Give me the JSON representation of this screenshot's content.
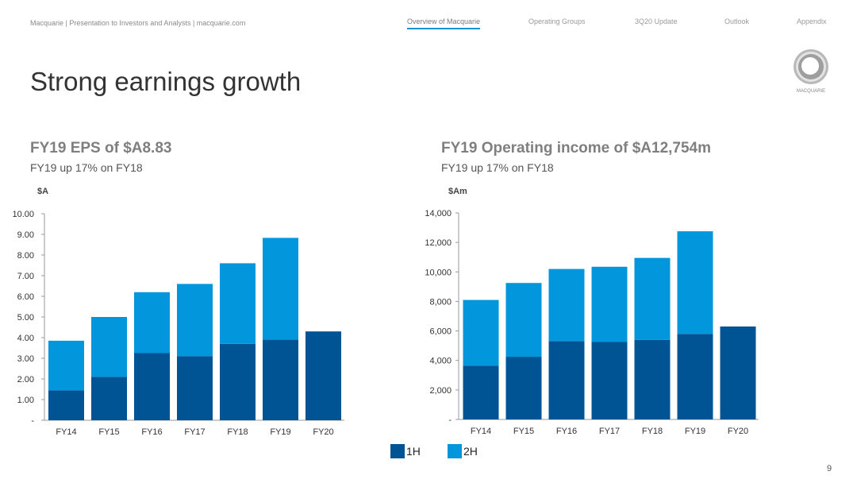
{
  "header": {
    "breadcrumb": "Macquarie  |  Presentation to Investors and Analysts |  macquarie.com",
    "nav": [
      {
        "label": "Overview of Macquarie",
        "active": true
      },
      {
        "label": "Operating Groups",
        "active": false
      },
      {
        "label": "3Q20 Update",
        "active": false
      },
      {
        "label": "Outlook",
        "active": false
      },
      {
        "label": "Appendix",
        "active": false
      }
    ],
    "logo_text": "MACQUARIE"
  },
  "page": {
    "title": "Strong earnings growth",
    "number": "9"
  },
  "colors": {
    "first_half": "#005493",
    "second_half": "#0296dc",
    "active_nav": "#1e90d6"
  },
  "legend": {
    "first": "1H",
    "second": "2H"
  },
  "left_chart": {
    "heading": "FY19 EPS of $A8.83",
    "subheading": "FY19 up 17% on FY18",
    "unit": "$A"
  },
  "right_chart": {
    "heading": "FY19 Operating income of $A12,754m",
    "subheading": "FY19 up 17% on FY18",
    "unit": "$Am"
  },
  "chart_data": [
    {
      "type": "bar",
      "stacked": true,
      "categories": [
        "FY14",
        "FY15",
        "FY16",
        "FY17",
        "FY18",
        "FY19",
        "FY20"
      ],
      "series": [
        {
          "name": "1H",
          "values": [
            1.45,
            2.1,
            3.25,
            3.1,
            3.7,
            3.9,
            4.3
          ]
        },
        {
          "name": "2H",
          "values": [
            2.4,
            2.9,
            2.95,
            3.5,
            3.9,
            4.93,
            0
          ]
        }
      ],
      "ylabel": "$A",
      "ylim": [
        0,
        10
      ],
      "yticks": [
        "-",
        "1.00",
        "2.00",
        "3.00",
        "4.00",
        "5.00",
        "6.00",
        "7.00",
        "8.00",
        "9.00",
        "10.00"
      ],
      "grid": false
    },
    {
      "type": "bar",
      "stacked": true,
      "categories": [
        "FY14",
        "FY15",
        "FY16",
        "FY17",
        "FY18",
        "FY19",
        "FY20"
      ],
      "series": [
        {
          "name": "1H",
          "values": [
            3650,
            4250,
            5300,
            5250,
            5400,
            5800,
            6300
          ]
        },
        {
          "name": "2H",
          "values": [
            4450,
            5000,
            4900,
            5100,
            5550,
            6954,
            0
          ]
        }
      ],
      "ylabel": "$Am",
      "ylim": [
        0,
        14000
      ],
      "yticks": [
        "-",
        "2,000",
        "4,000",
        "6,000",
        "8,000",
        "10,000",
        "12,000",
        "14,000"
      ],
      "grid": false
    }
  ]
}
